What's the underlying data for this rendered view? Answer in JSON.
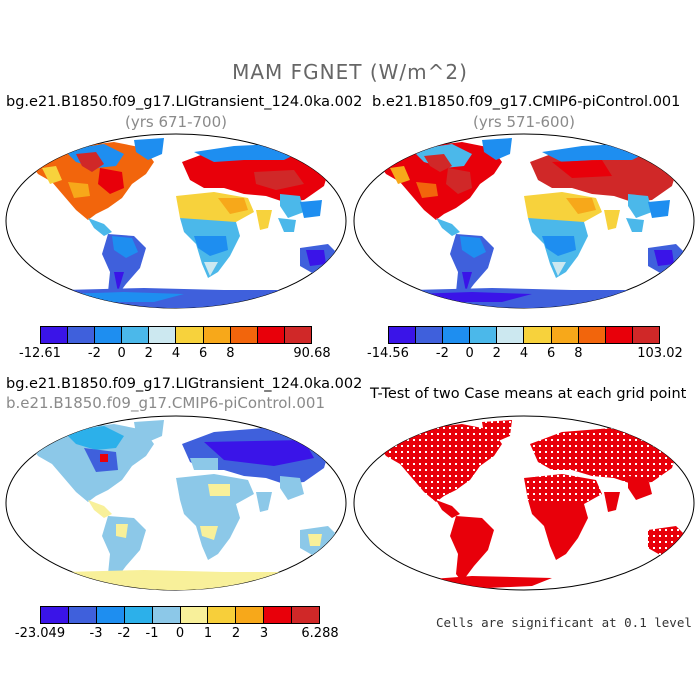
{
  "main_title": "MAM FGNET (W/m^2)",
  "panels": [
    {
      "title": "bg.e21.B1850.f09_g17.LIGtransient_124.0ka.002",
      "subtitle": "(yrs 671-700)",
      "colorbar": {
        "colors": [
          "#3a14e8",
          "#3f60dc",
          "#1e8ef0",
          "#4bb8ea",
          "#cce8f0",
          "#f7d23c",
          "#f7a81a",
          "#f2650c",
          "#e8000a",
          "#d02828"
        ],
        "labels": [
          "-12.61",
          "-2",
          "0",
          "2",
          "4",
          "6",
          "8",
          "90.68"
        ]
      }
    },
    {
      "title": "b.e21.B1850.f09_g17.CMIP6-piControl.001",
      "subtitle": "(yrs 571-600)",
      "colorbar": {
        "colors": [
          "#3a14e8",
          "#3f60dc",
          "#1e8ef0",
          "#4bb8ea",
          "#cce8f0",
          "#f7d23c",
          "#f7a81a",
          "#f2650c",
          "#e8000a",
          "#d02828"
        ],
        "labels": [
          "-14.56",
          "-2",
          "0",
          "2",
          "4",
          "6",
          "8",
          "103.02"
        ]
      }
    },
    {
      "title": "bg.e21.B1850.f09_g17.LIGtransient_124.0ka.002",
      "subtitle": "b.e21.B1850.f09_g17.CMIP6-piControl.001",
      "colorbar": {
        "colors": [
          "#3a14e8",
          "#3f60dc",
          "#1e8ef0",
          "#2cb0ea",
          "#8cc8e8",
          "#f8f09a",
          "#f7cf3a",
          "#f7a81a",
          "#e8000a",
          "#d02828"
        ],
        "labels": [
          "-23.049",
          "-3",
          "-2",
          "-1",
          "0",
          "1",
          "2",
          "3",
          "6.288"
        ]
      }
    },
    {
      "title": "T-Test of two Case means at each grid point",
      "note": "Cells are significant at 0.1 level"
    }
  ]
}
